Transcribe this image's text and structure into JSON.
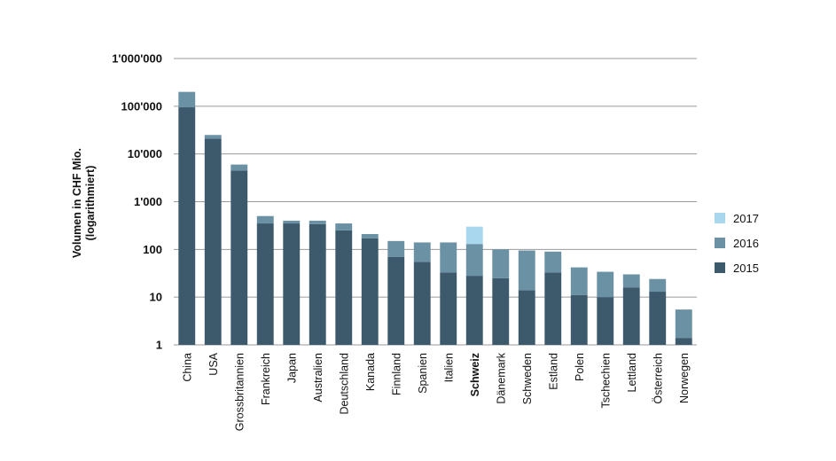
{
  "chart_data": {
    "type": "bar",
    "stacked": true,
    "ylabel": [
      "Volumen in CHF Mio.",
      "(logarithmiert)"
    ],
    "xlabel": "",
    "title": "",
    "yscale": "log",
    "ylim": [
      1,
      1000000
    ],
    "yticks": [
      {
        "value": 1,
        "label": "1"
      },
      {
        "value": 10,
        "label": "10"
      },
      {
        "value": 100,
        "label": "100"
      },
      {
        "value": 1000,
        "label": "1'000"
      },
      {
        "value": 10000,
        "label": "10'000"
      },
      {
        "value": 100000,
        "label": "100'000"
      },
      {
        "value": 1000000,
        "label": "1'000'000"
      }
    ],
    "grid": true,
    "legend_position": "right",
    "categories": [
      "China",
      "USA",
      "Grossbritannien",
      "Frankreich",
      "Japan",
      "Australien",
      "Deutschland",
      "Kanada",
      "Finnland",
      "Spanien",
      "Italien",
      "Schweiz",
      "Dänemark",
      "Schweden",
      "Estland",
      "Polen",
      "Tschechien",
      "Lettland",
      "Österreich",
      "Norwegen"
    ],
    "highlight_category": "Schweiz",
    "series": [
      {
        "name": "2015",
        "color": "#3d5a6c",
        "values": [
          95000,
          21000,
          4500,
          350,
          350,
          340,
          250,
          170,
          70,
          55,
          33,
          28,
          25,
          14,
          33,
          11,
          10,
          16,
          13,
          1.4
        ]
      },
      {
        "name": "2016",
        "color": "#6b91a4",
        "values": [
          200000,
          25000,
          6000,
          500,
          400,
          400,
          350,
          210,
          150,
          140,
          140,
          130,
          100,
          95,
          90,
          42,
          34,
          30,
          24,
          5.5
        ]
      },
      {
        "name": "2017",
        "color": "#a9d7ee",
        "values": [
          null,
          null,
          null,
          null,
          null,
          null,
          null,
          null,
          null,
          null,
          null,
          300,
          null,
          null,
          null,
          null,
          null,
          null,
          null,
          null
        ]
      }
    ],
    "note": "Values are cumulative stack tops on a log axis (2016 bar extends from 2015 top to 2016 value)."
  }
}
